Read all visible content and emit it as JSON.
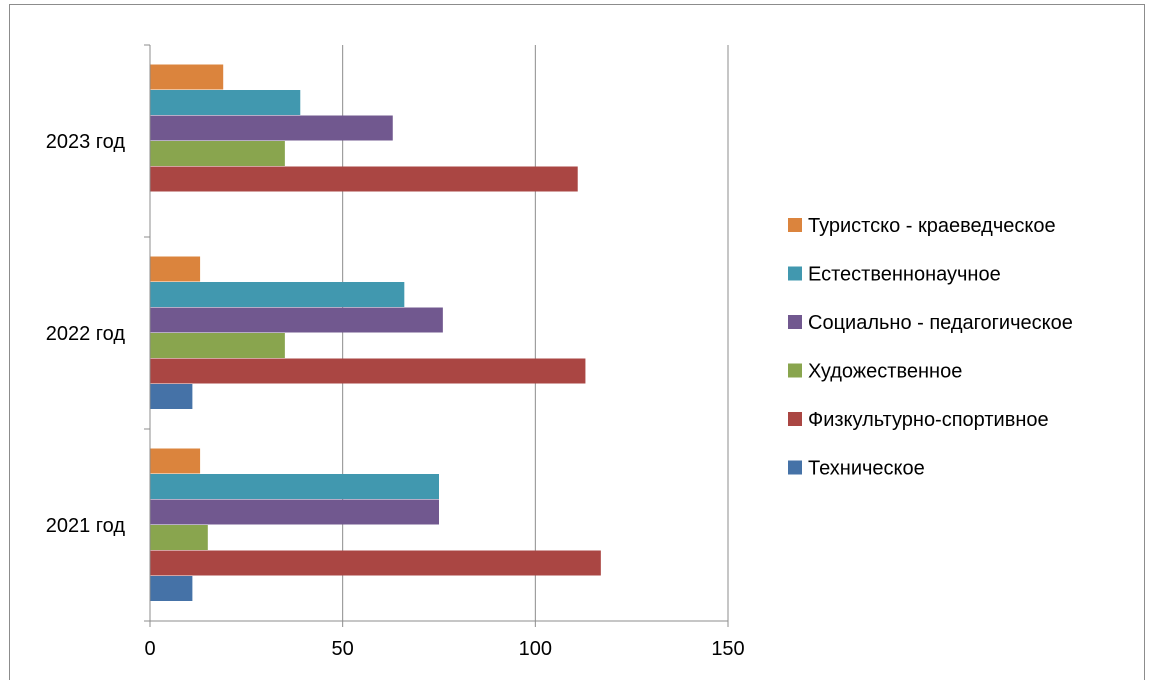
{
  "chart_data": {
    "type": "bar",
    "orientation": "horizontal",
    "categories": [
      "2021 год",
      "2022 год",
      "2023 год"
    ],
    "series": [
      {
        "name": "Техническое",
        "color": "#4572a7",
        "values": [
          11,
          11,
          null
        ]
      },
      {
        "name": "Физкультурно-спортивное",
        "color": "#aa4643",
        "values": [
          117,
          113,
          111
        ]
      },
      {
        "name": "Художественное",
        "color": "#89a54e",
        "values": [
          15,
          35,
          35
        ]
      },
      {
        "name": "Социально - педагогическое",
        "color": "#71588f",
        "values": [
          75,
          76,
          63
        ]
      },
      {
        "name": "Естественнонаучное",
        "color": "#4198af",
        "values": [
          75,
          66,
          39
        ]
      },
      {
        "name": "Туристско - краеведческое",
        "color": "#db843d",
        "values": [
          13,
          13,
          19
        ]
      }
    ],
    "xlim": [
      0,
      150
    ],
    "x_ticks": [
      "0",
      "50",
      "100",
      "150"
    ],
    "grid": true,
    "legend_position": "right",
    "title": "",
    "xlabel": "",
    "ylabel": ""
  }
}
